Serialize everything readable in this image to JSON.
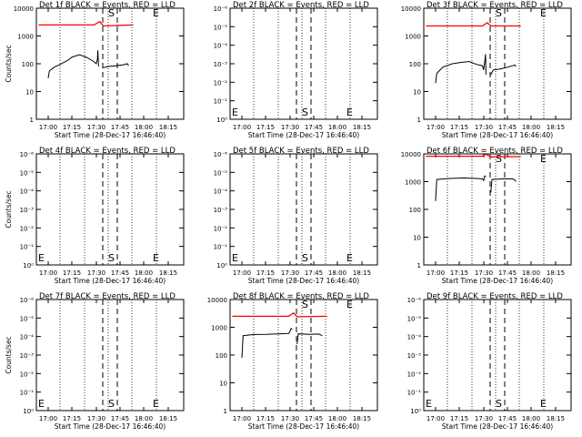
{
  "chart_data": [
    {
      "type": "line",
      "title": "Det 1f BLACK = Events, RED = LLD",
      "xlabel": "Start Time (28-Dec-17 16:46:40)",
      "ylabel": "Counts/sec",
      "y_scale": "log",
      "ytick_labels": [
        "10000",
        "1000",
        "100",
        "10",
        "1"
      ],
      "xtick_labels": [
        "17:00",
        "17:15",
        "17:30",
        "17:45",
        "18:00",
        "18:15"
      ],
      "markers": [
        "S",
        "E"
      ],
      "series": [
        {
          "color": "#000000",
          "segments": [
            [
              [
                0.0,
                30
              ],
              [
                0.05,
                55
              ],
              [
                0.25,
                75
              ],
              [
                0.5,
                95
              ],
              [
                0.8,
                130
              ],
              [
                1.0,
                175
              ],
              [
                1.3,
                210
              ],
              [
                1.6,
                170
              ],
              [
                1.9,
                120
              ],
              [
                2.0,
                100
              ],
              [
                2.05,
                140
              ],
              [
                2.07,
                300
              ],
              [
                2.1,
                80
              ]
            ],
            [
              [
                2.25,
                70
              ],
              [
                2.5,
                80
              ],
              [
                2.8,
                85
              ],
              [
                3.1,
                90
              ],
              [
                3.3,
                100
              ],
              [
                3.35,
                85
              ]
            ]
          ]
        },
        {
          "color": "#ff0000",
          "segments": [
            [
              [
                -0.4,
                2500
              ],
              [
                1.9,
                2500
              ],
              [
                2.15,
                3300
              ],
              [
                2.3,
                2300
              ],
              [
                3.55,
                2500
              ]
            ]
          ]
        }
      ]
    },
    {
      "type": "line",
      "title": "Det 2f BLACK = Events, RED = LLD",
      "xlabel": "Start Time (28-Dec-17 16:46:40)",
      "ylabel": "",
      "y_scale": "log",
      "ytick_labels": [
        "10⁻⁶",
        "10⁻⁵",
        "10⁻⁴",
        "10⁻³",
        "10⁻²",
        "10⁻¹",
        "10⁰"
      ],
      "xtick_labels": [
        "17:00",
        "17:15",
        "17:30",
        "17:45",
        "18:00",
        "18:15"
      ],
      "markers": [
        "E",
        "S",
        "E"
      ],
      "series": []
    },
    {
      "type": "line",
      "title": "Det 3f BLACK = Events, RED = LLD",
      "xlabel": "Start Time (28-Dec-17 16:46:40)",
      "ylabel": "",
      "y_scale": "log",
      "ytick_labels": [
        "10000",
        "1000",
        "100",
        "10",
        "1"
      ],
      "xtick_labels": [
        "17:00",
        "17:15",
        "17:30",
        "17:45",
        "18:00",
        "18:15"
      ],
      "markers": [
        "S",
        "E"
      ],
      "series": [
        {
          "color": "#000000",
          "segments": [
            [
              [
                0.0,
                20
              ],
              [
                0.05,
                45
              ],
              [
                0.3,
                75
              ],
              [
                0.7,
                100
              ],
              [
                1.0,
                110
              ],
              [
                1.4,
                120
              ],
              [
                1.7,
                95
              ],
              [
                1.95,
                85
              ],
              [
                2.0,
                60
              ],
              [
                2.05,
                120
              ],
              [
                2.08,
                220
              ],
              [
                2.1,
                40
              ]
            ],
            [
              [
                2.3,
                40
              ],
              [
                2.4,
                60
              ],
              [
                2.7,
                65
              ],
              [
                3.0,
                75
              ],
              [
                3.3,
                90
              ],
              [
                3.35,
                80
              ]
            ]
          ]
        },
        {
          "color": "#ff0000",
          "segments": [
            [
              [
                -0.4,
                2300
              ],
              [
                1.95,
                2300
              ],
              [
                2.15,
                3000
              ],
              [
                2.3,
                2300
              ],
              [
                3.55,
                2300
              ]
            ]
          ]
        }
      ]
    },
    {
      "type": "line",
      "title": "Det 4f BLACK = Events, RED = LLD",
      "xlabel": "Start Time (28-Dec-17 16:46:40)",
      "ylabel": "Counts/sec",
      "y_scale": "log",
      "ytick_labels": [
        "10⁻⁶",
        "10⁻⁵",
        "10⁻⁴",
        "10⁻³",
        "10⁻²",
        "10⁻¹",
        "10⁰"
      ],
      "xtick_labels": [
        "17:00",
        "17:15",
        "17:30",
        "17:45",
        "18:00",
        "18:15"
      ],
      "markers": [
        "E",
        "S",
        "E"
      ],
      "series": []
    },
    {
      "type": "line",
      "title": "Det 5f BLACK = Events, RED = LLD",
      "xlabel": "Start Time (28-Dec-17 16:46:40)",
      "ylabel": "",
      "y_scale": "log",
      "ytick_labels": [
        "10⁻⁶",
        "10⁻⁵",
        "10⁻⁴",
        "10⁻³",
        "10⁻²",
        "10⁻¹",
        "10⁰"
      ],
      "xtick_labels": [
        "17:00",
        "17:15",
        "17:30",
        "17:45",
        "18:00",
        "18:15"
      ],
      "markers": [
        "E",
        "S",
        "E"
      ],
      "series": []
    },
    {
      "type": "line",
      "title": "Det 6f BLACK = Events, RED = LLD",
      "xlabel": "Start Time (28-Dec-17 16:46:40)",
      "ylabel": "",
      "y_scale": "log",
      "ytick_labels": [
        "10000",
        "1000",
        "100",
        "10",
        "1"
      ],
      "xtick_labels": [
        "17:00",
        "17:15",
        "17:30",
        "17:45",
        "18:00",
        "18:15"
      ],
      "markers": [
        "S",
        "E"
      ],
      "series": [
        {
          "color": "#000000",
          "segments": [
            [
              [
                0.0,
                200
              ],
              [
                0.05,
                1200
              ],
              [
                0.6,
                1300
              ],
              [
                1.2,
                1350
              ],
              [
                1.7,
                1300
              ],
              [
                1.95,
                1250
              ],
              [
                2.0,
                1100
              ],
              [
                2.05,
                1600
              ],
              [
                2.1,
                1500
              ]
            ],
            [
              [
                2.3,
                400
              ],
              [
                2.35,
                1200
              ],
              [
                2.8,
                1250
              ],
              [
                3.2,
                1250
              ],
              [
                3.3,
                1150
              ],
              [
                3.35,
                1000
              ]
            ]
          ]
        },
        {
          "color": "#ff0000",
          "segments": [
            [
              [
                -0.4,
                8200
              ],
              [
                1.95,
                8200
              ],
              [
                2.1,
                9800
              ],
              [
                2.3,
                7800
              ],
              [
                3.55,
                8000
              ]
            ]
          ]
        }
      ]
    },
    {
      "type": "line",
      "title": "Det 7f BLACK = Events, RED = LLD",
      "xlabel": "Start Time (28-Dec-17 16:46:40)",
      "ylabel": "Counts/sec",
      "y_scale": "log",
      "ytick_labels": [
        "10⁻⁶",
        "10⁻⁵",
        "10⁻⁴",
        "10⁻³",
        "10⁻²",
        "10⁻¹",
        "10⁰"
      ],
      "xtick_labels": [
        "17:00",
        "17:15",
        "17:30",
        "17:45",
        "18:00",
        "18:15"
      ],
      "markers": [
        "E",
        "S",
        "E"
      ],
      "series": []
    },
    {
      "type": "line",
      "title": "Det 8f BLACK = Events, RED = LLD",
      "xlabel": "Start Time (28-Dec-17 16:46:40)",
      "ylabel": "",
      "y_scale": "log",
      "ytick_labels": [
        "10000",
        "1000",
        "100",
        "10",
        "1"
      ],
      "xtick_labels": [
        "17:00",
        "17:15",
        "17:30",
        "17:45",
        "18:00",
        "18:15"
      ],
      "markers": [
        "S",
        "E"
      ],
      "series": [
        {
          "color": "#000000",
          "segments": [
            [
              [
                0.0,
                80
              ],
              [
                0.05,
                500
              ],
              [
                0.5,
                550
              ],
              [
                1.0,
                560
              ],
              [
                1.5,
                580
              ],
              [
                1.95,
                600
              ],
              [
                2.0,
                700
              ],
              [
                2.05,
                900
              ],
              [
                2.1,
                850
              ]
            ],
            [
              [
                2.3,
                250
              ],
              [
                2.35,
                580
              ],
              [
                2.8,
                560
              ],
              [
                3.2,
                570
              ],
              [
                3.35,
                500
              ]
            ]
          ]
        },
        {
          "color": "#ff0000",
          "segments": [
            [
              [
                -0.4,
                2500
              ],
              [
                1.95,
                2500
              ],
              [
                2.15,
                3300
              ],
              [
                2.3,
                2400
              ],
              [
                3.55,
                2500
              ]
            ]
          ]
        }
      ]
    },
    {
      "type": "line",
      "title": "Det 9f BLACK = Events, RED = LLD",
      "xlabel": "Start Time (28-Dec-17 16:46:40)",
      "ylabel": "",
      "y_scale": "log",
      "ytick_labels": [
        "10⁻⁶",
        "10⁻⁵",
        "10⁻⁴",
        "10⁻³",
        "10⁻²",
        "10⁻¹",
        "10⁰"
      ],
      "xtick_labels": [
        "17:00",
        "17:15",
        "17:30",
        "17:45",
        "18:00",
        "18:15"
      ],
      "markers": [
        "E",
        "S",
        "E"
      ],
      "series": []
    }
  ]
}
